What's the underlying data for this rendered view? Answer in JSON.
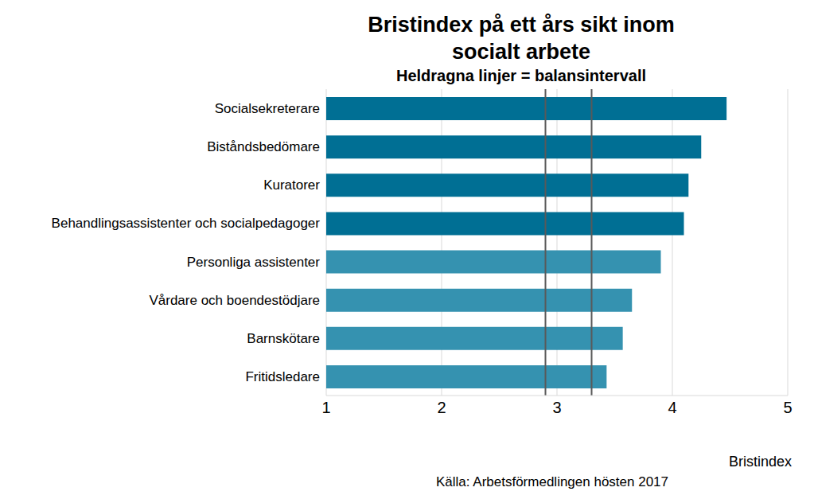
{
  "chart_data": {
    "type": "bar",
    "orientation": "horizontal",
    "title": "Bristindex på ett års sikt inom socialt arbete",
    "subtitle": "Heldragna linjer = balansintervall",
    "x_label": "Bristindex",
    "source": "Källa: Arbetsförmedlingen hösten 2017",
    "categories": [
      "Socialsekreterare",
      "Biståndsbedömare",
      "Kuratorer",
      "Behandlingsassistenter och socialpedagoger",
      "Personliga assistenter",
      "Vårdare och boendestödjare",
      "Barnskötare",
      "Fritidsledare"
    ],
    "values": [
      4.47,
      4.25,
      4.14,
      4.1,
      3.9,
      3.65,
      3.57,
      3.43
    ],
    "colors": [
      "#006f94",
      "#006f94",
      "#006f94",
      "#006f94",
      "#3592b0",
      "#3592b0",
      "#3592b0",
      "#3592b0"
    ],
    "balance_interval": [
      2.9,
      3.3
    ],
    "xlim": [
      1,
      5
    ],
    "xticks": [
      1,
      2,
      3,
      4,
      5
    ],
    "grid": true
  }
}
